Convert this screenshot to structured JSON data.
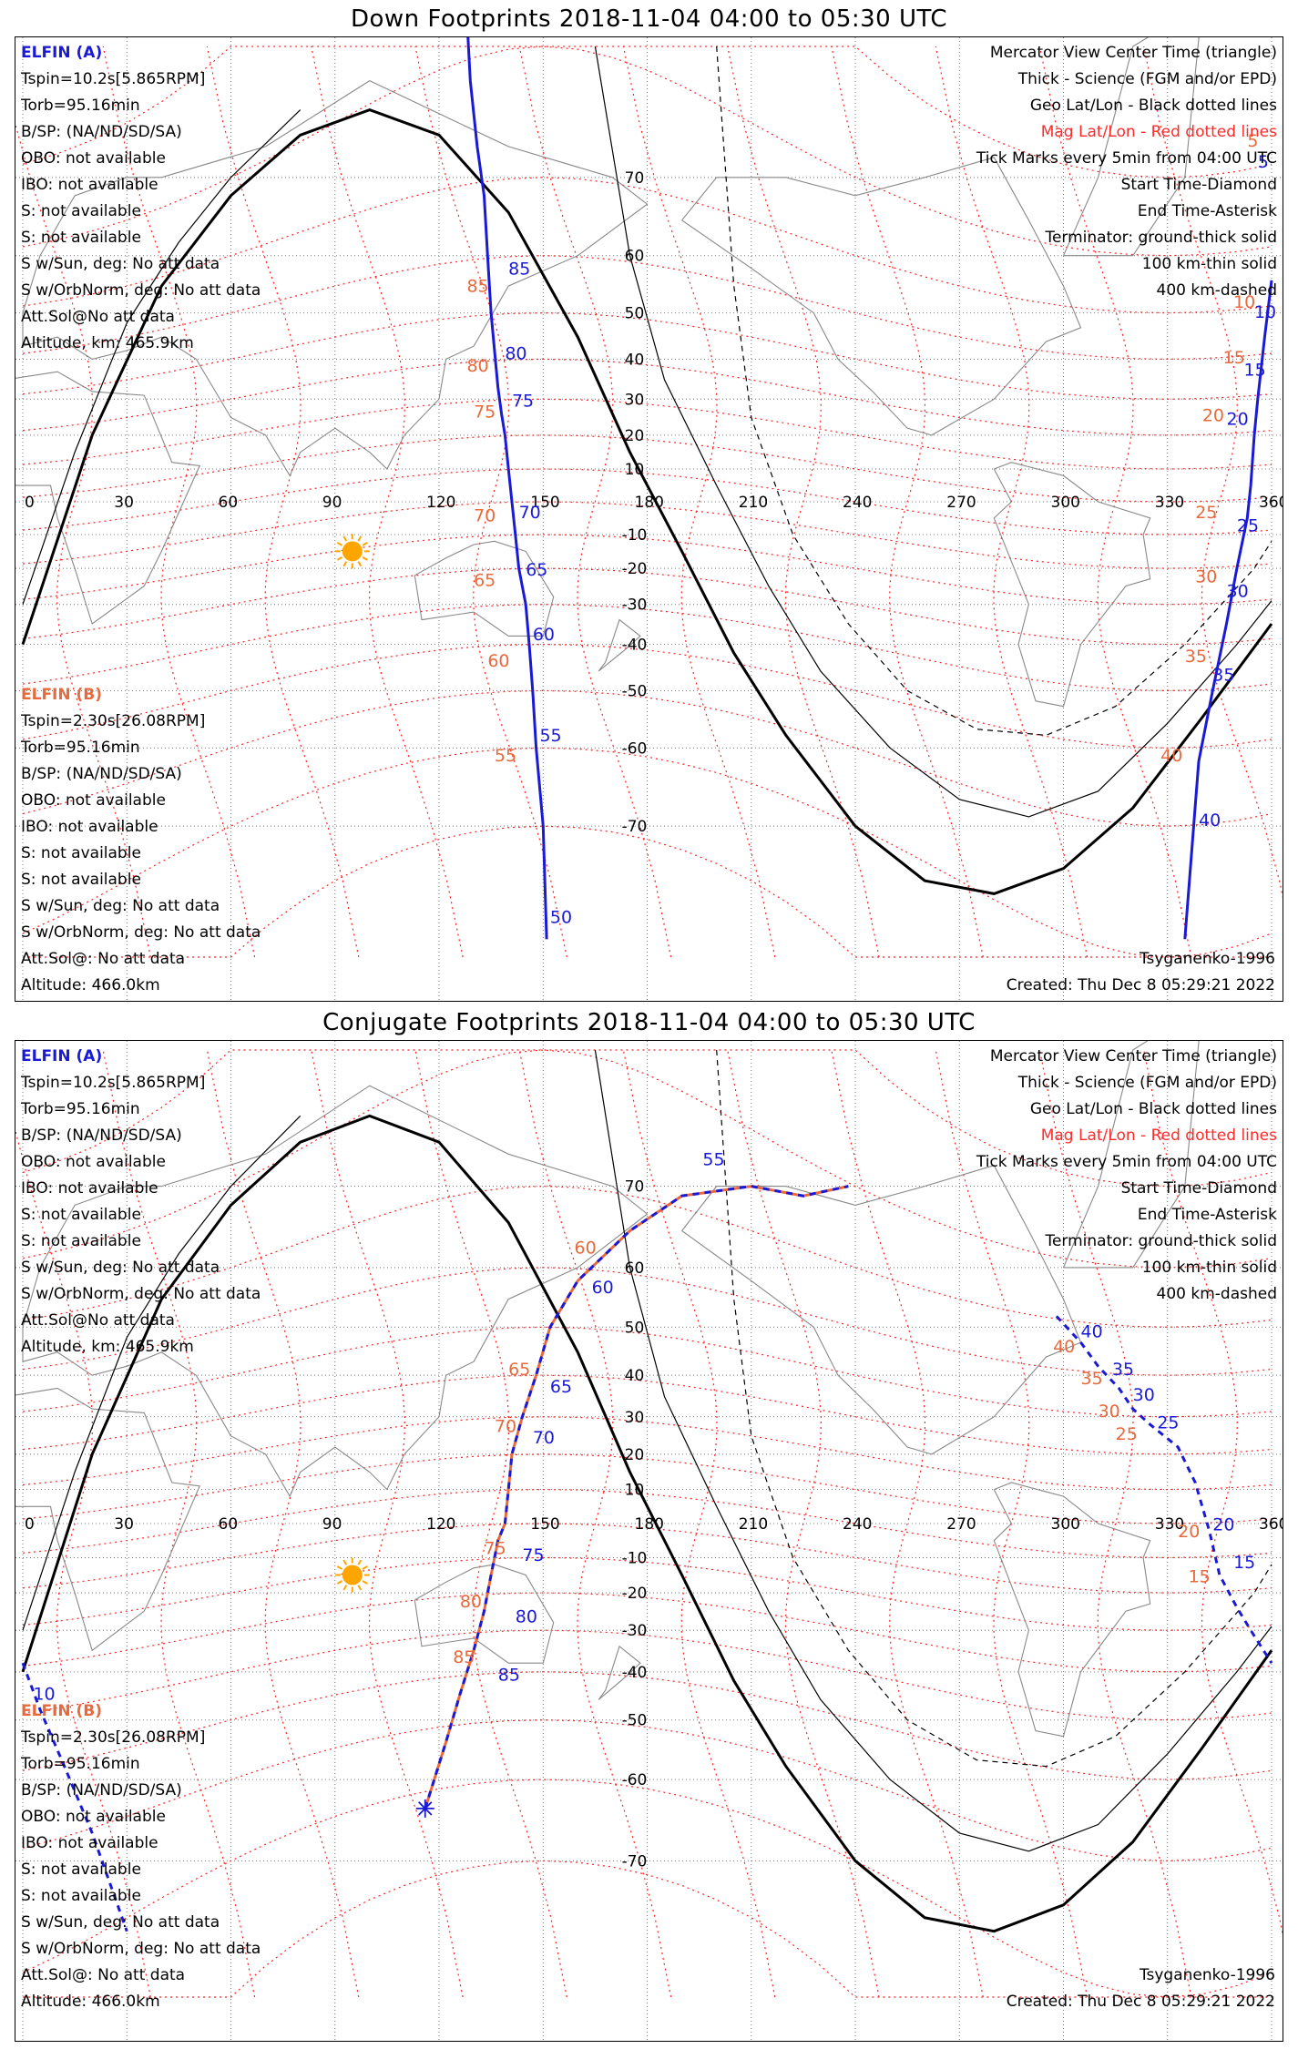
{
  "panels": [
    {
      "title": "Down Footprints 2018-11-04 04:00 to 05:30 UTC",
      "elfin_a": {
        "name": "ELFIN (A)",
        "lines": [
          "Tspin=10.2s[5.865RPM]",
          "Torb=95.16min",
          "B/SP: (NA/ND/SD/SA)",
          "OBO: not available",
          "IBO: not available",
          "S: not available",
          "S: not available",
          "S w/Sun, deg: No att data",
          "S w/OrbNorm, deg: No att data",
          "Att.Sol@No att data",
          "Altitude, km: 465.9km"
        ]
      },
      "elfin_b": {
        "name": "ELFIN (B)",
        "lines": [
          "Tspin=2.30s[26.08RPM]",
          "Torb=95.16min",
          "B/SP: (NA/ND/SD/SA)",
          "OBO: not available",
          "IBO: not available",
          "S: not available",
          "S: not available",
          "S w/Sun, deg: No att data",
          "S w/OrbNorm, deg: No att data",
          "Att.Sol@: No att data",
          "Altitude: 466.0km"
        ]
      },
      "model": "Tsyganenko-1996",
      "created": "Created: Thu Dec  8 05:29:21 2022"
    },
    {
      "title": "Conjugate Footprints 2018-11-04 04:00 to 05:30 UTC",
      "elfin_a": {
        "name": "ELFIN (A)",
        "lines": [
          "Tspin=10.2s[5.865RPM]",
          "Torb=95.16min",
          "B/SP: (NA/ND/SD/SA)",
          "OBO: not available",
          "IBO: not available",
          "S: not available",
          "S: not available",
          "S w/Sun, deg: No att data",
          "S w/OrbNorm, deg: No att data",
          "Att.Sol@No att data",
          "Altitude, km: 465.9km"
        ]
      },
      "elfin_b": {
        "name": "ELFIN (B)",
        "lines": [
          "Tspin=2.30s[26.08RPM]",
          "Torb=95.16min",
          "B/SP: (NA/ND/SD/SA)",
          "OBO: not available",
          "IBO: not available",
          "S: not available",
          "S: not available",
          "S w/Sun, deg: No att data",
          "S w/OrbNorm, deg: No att data",
          "Att.Sol@: No att data",
          "Altitude: 466.0km"
        ]
      },
      "model": "Tsyganenko-1996",
      "created": "Created: Thu Dec  8 05:29:21 2022"
    }
  ],
  "legend": {
    "lines": [
      "Mercator View Center Time (triangle)",
      "Thick - Science (FGM and/or EPD)",
      "Geo Lat/Lon - Black dotted lines",
      "Mag Lat/Lon - Red dotted lines",
      "Tick Marks every 5min from 04:00 UTC",
      "Start Time-Diamond",
      "End Time-Asterisk",
      "Terminator: ground-thick solid",
      "100 km-thin solid",
      "400 km-dashed"
    ],
    "mag_line_index": 3
  },
  "axes": {
    "lon_ticks": [
      0,
      30,
      60,
      90,
      120,
      150,
      180,
      210,
      240,
      270,
      300,
      330,
      360
    ],
    "lat_ticks": [
      70,
      60,
      50,
      40,
      30,
      20,
      10,
      -10,
      -20,
      -30,
      -40,
      -50,
      -60,
      -70
    ]
  },
  "map_data": {
    "projection": "mercator",
    "lon_range": [
      0,
      360
    ],
    "lat_range": [
      -80,
      80
    ],
    "down": {
      "elfin_a_track": [
        [
          127,
          84
        ],
        [
          129,
          78
        ],
        [
          131,
          73
        ],
        [
          133,
          68
        ],
        [
          134,
          60
        ],
        [
          135,
          50
        ],
        [
          136,
          42
        ],
        [
          137,
          33
        ],
        [
          138,
          26
        ],
        [
          139,
          20
        ],
        [
          140,
          10
        ],
        [
          141,
          0
        ],
        [
          142,
          -10
        ],
        [
          143,
          -20
        ],
        [
          145,
          -30
        ],
        [
          146,
          -40
        ],
        [
          147,
          -50
        ],
        [
          148,
          -60
        ],
        [
          150,
          -70
        ],
        [
          151,
          -79
        ]
      ],
      "elfin_a_labels": [
        [
          "85",
          140,
          57
        ],
        [
          "80",
          139,
          40
        ],
        [
          "75",
          141,
          28
        ],
        [
          "70",
          143,
          -5
        ],
        [
          "65",
          145,
          -22
        ],
        [
          "60",
          147,
          -39
        ],
        [
          "55",
          149,
          -59
        ],
        [
          "50",
          152,
          -78
        ]
      ],
      "elfin_b_labels": [
        [
          "85",
          128,
          54
        ],
        [
          "80",
          128,
          37
        ],
        [
          "75",
          130,
          25
        ],
        [
          "70",
          130,
          -6
        ],
        [
          "65",
          130,
          -25
        ],
        [
          "60",
          134,
          -45
        ],
        [
          "55",
          136,
          -62
        ]
      ],
      "elfin_a_track2": [
        [
          360,
          56
        ],
        [
          358,
          45
        ],
        [
          356,
          30
        ],
        [
          355,
          20
        ],
        [
          354,
          5
        ],
        [
          353,
          -5
        ],
        [
          350,
          -20
        ],
        [
          347,
          -35
        ],
        [
          343,
          -50
        ],
        [
          339,
          -62
        ],
        [
          335,
          -79
        ]
      ],
      "elfin_a2_labels": [
        [
          "5",
          356,
          71
        ],
        [
          "10",
          355,
          49
        ],
        [
          "15",
          352,
          36
        ],
        [
          "20",
          347,
          23
        ],
        [
          "25",
          350,
          -9
        ],
        [
          "30",
          347,
          -28
        ],
        [
          "35",
          343,
          -48
        ],
        [
          "40",
          339,
          -70
        ]
      ],
      "elfin_b2_labels": [
        [
          "5",
          353,
          73
        ],
        [
          "10",
          349,
          51
        ],
        [
          "15",
          346,
          39
        ],
        [
          "20",
          340,
          24
        ],
        [
          "25",
          338,
          -5
        ],
        [
          "30",
          338,
          -24
        ],
        [
          "35",
          335,
          -44
        ],
        [
          "40",
          328,
          -62
        ]
      ]
    },
    "conjugate": {
      "elfin_a_track": [
        [
          116,
          -64
        ],
        [
          122,
          -54
        ],
        [
          126,
          -45
        ],
        [
          130,
          -35
        ],
        [
          133,
          -25
        ],
        [
          135,
          -15
        ],
        [
          137,
          -5
        ],
        [
          139,
          0
        ],
        [
          140,
          10
        ],
        [
          141,
          20
        ],
        [
          144,
          30
        ],
        [
          148,
          40
        ],
        [
          152,
          50
        ],
        [
          160,
          58
        ],
        [
          175,
          65
        ],
        [
          190,
          69
        ],
        [
          210,
          70
        ],
        [
          225,
          69
        ],
        [
          238,
          70
        ]
      ],
      "elfin_a_labels": [
        [
          "85",
          137,
          -42
        ],
        [
          "80",
          142,
          -28
        ],
        [
          "75",
          144,
          -11
        ],
        [
          "70",
          147,
          23
        ],
        [
          "65",
          152,
          36
        ],
        [
          "60",
          164,
          56
        ],
        [
          "55",
          196,
          72
        ]
      ],
      "elfin_b_labels": [
        [
          "85",
          124,
          -38
        ],
        [
          "80",
          126,
          -24
        ],
        [
          "75",
          133,
          -9
        ],
        [
          "70",
          136,
          26
        ],
        [
          "65",
          140,
          40
        ],
        [
          "60",
          159,
          62
        ]
      ],
      "track2": [
        [
          298,
          52
        ],
        [
          305,
          47
        ],
        [
          310,
          42
        ],
        [
          316,
          37
        ],
        [
          320,
          32
        ],
        [
          325,
          28
        ],
        [
          333,
          22
        ],
        [
          338,
          12
        ],
        [
          342,
          -2
        ],
        [
          345,
          -15
        ],
        [
          350,
          -24
        ],
        [
          354,
          -30
        ],
        [
          360,
          -38
        ]
      ],
      "track2_labels": [
        [
          "40",
          305,
          48
        ],
        [
          "35",
          314,
          40
        ],
        [
          "30",
          320,
          34
        ],
        [
          "25",
          327,
          27
        ],
        [
          "20",
          343,
          -2
        ],
        [
          "15",
          349,
          -13
        ],
        [
          "10",
          3,
          -46
        ]
      ],
      "track2_b_labels": [
        [
          "40",
          297,
          45
        ],
        [
          "35",
          305,
          38
        ],
        [
          "30",
          310,
          30
        ],
        [
          "25",
          315,
          24
        ],
        [
          "20",
          333,
          -4
        ],
        [
          "15",
          336,
          -17
        ]
      ],
      "track3": [
        [
          0,
          -38
        ],
        [
          5,
          -48
        ],
        [
          12,
          -58
        ],
        [
          20,
          -67
        ],
        [
          30,
          -76
        ]
      ]
    },
    "terminator": [
      [
        0,
        -40
      ],
      [
        20,
        20
      ],
      [
        40,
        55
      ],
      [
        60,
        68
      ],
      [
        80,
        74
      ],
      [
        100,
        76
      ],
      [
        120,
        74
      ],
      [
        140,
        66
      ],
      [
        160,
        45
      ],
      [
        175,
        15
      ],
      [
        190,
        -15
      ],
      [
        205,
        -42
      ],
      [
        220,
        -58
      ],
      [
        240,
        -70
      ],
      [
        260,
        -75
      ],
      [
        280,
        -76
      ],
      [
        300,
        -74
      ],
      [
        320,
        -68
      ],
      [
        340,
        -55
      ],
      [
        360,
        -35
      ]
    ],
    "line100": [
      [
        0,
        -30
      ],
      [
        15,
        15
      ],
      [
        30,
        48
      ],
      [
        45,
        62
      ],
      [
        60,
        70
      ],
      [
        80,
        76
      ]
    ],
    "line100b": [
      [
        165,
        80
      ],
      [
        175,
        60
      ],
      [
        185,
        35
      ],
      [
        200,
        5
      ],
      [
        215,
        -25
      ],
      [
        230,
        -46
      ],
      [
        250,
        -60
      ],
      [
        270,
        -67
      ],
      [
        290,
        -69
      ],
      [
        310,
        -66
      ],
      [
        330,
        -56
      ],
      [
        350,
        -40
      ],
      [
        360,
        -29
      ]
    ],
    "line400": [
      [
        200,
        80
      ],
      [
        205,
        55
      ],
      [
        210,
        25
      ],
      [
        222,
        -10
      ],
      [
        238,
        -35
      ],
      [
        255,
        -50
      ],
      [
        275,
        -57
      ],
      [
        295,
        -58
      ],
      [
        315,
        -53
      ],
      [
        335,
        -40
      ],
      [
        355,
        -20
      ],
      [
        360,
        -12
      ]
    ],
    "sun": [
      95,
      -15
    ]
  }
}
